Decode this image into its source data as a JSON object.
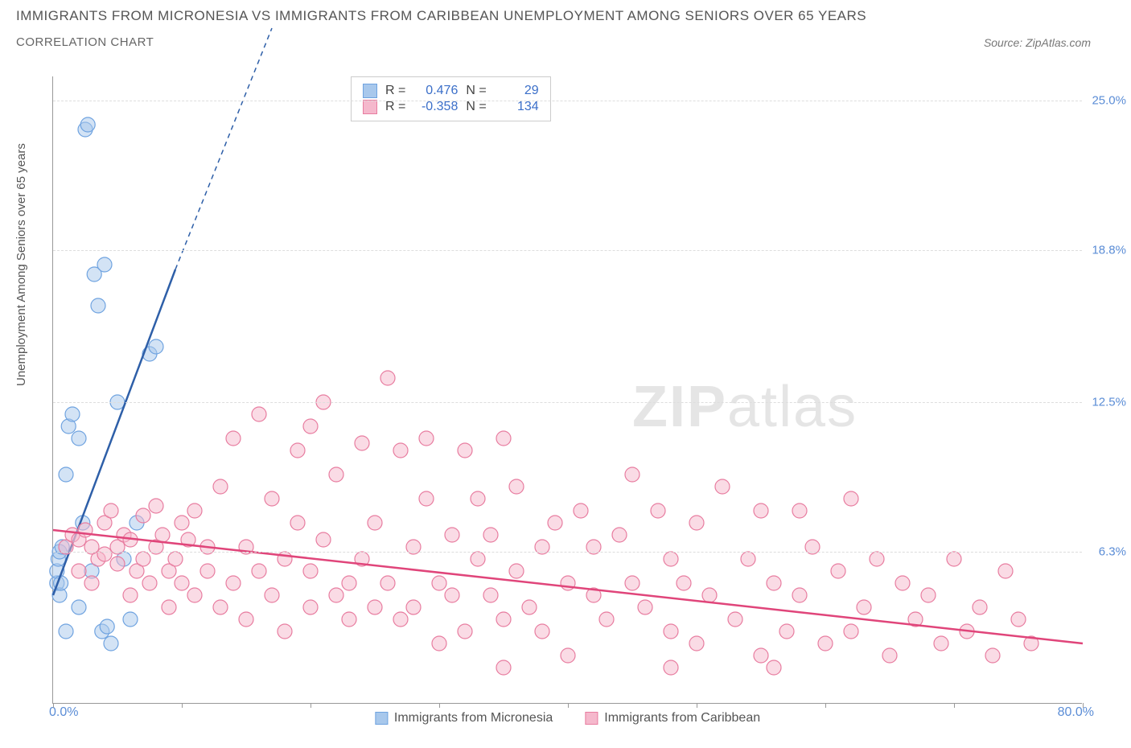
{
  "title": "IMMIGRANTS FROM MICRONESIA VS IMMIGRANTS FROM CARIBBEAN UNEMPLOYMENT AMONG SENIORS OVER 65 YEARS",
  "subtitle": "CORRELATION CHART",
  "source": "Source: ZipAtlas.com",
  "y_axis_label": "Unemployment Among Seniors over 65 years",
  "watermark_a": "ZIP",
  "watermark_b": "atlas",
  "chart": {
    "type": "scatter",
    "background_color": "#ffffff",
    "grid_color": "#dddddd",
    "axis_color": "#999999",
    "text_color": "#555555",
    "tick_label_color": "#5b8dd6",
    "xlim": [
      0,
      80
    ],
    "ylim": [
      0,
      26
    ],
    "x_ticks": [
      0,
      10,
      20,
      30,
      40,
      50,
      60,
      70,
      80
    ],
    "x_tick_labels": {
      "0": "0.0%",
      "80": "80.0%"
    },
    "y_gridlines": [
      6.3,
      12.5,
      18.8,
      25.0
    ],
    "y_tick_labels": [
      "6.3%",
      "12.5%",
      "18.8%",
      "25.0%"
    ],
    "marker_radius": 9,
    "marker_opacity": 0.5,
    "line_width": 2.5,
    "series": [
      {
        "name": "Immigrants from Micronesia",
        "color": "#6fa3e0",
        "fill": "#a8c8ec",
        "line_color": "#2e5fa8",
        "R": "0.476",
        "N": "29",
        "trend": {
          "x1": 0,
          "y1": 4.5,
          "x2": 9.5,
          "y2": 18.0,
          "dash_x2": 17,
          "dash_y2": 28
        },
        "points": [
          [
            0.3,
            5.0
          ],
          [
            0.3,
            5.5
          ],
          [
            0.4,
            6.0
          ],
          [
            0.5,
            4.5
          ],
          [
            0.5,
            6.3
          ],
          [
            0.6,
            5.0
          ],
          [
            0.7,
            6.5
          ],
          [
            1.0,
            9.5
          ],
          [
            1.2,
            11.5
          ],
          [
            1.5,
            12.0
          ],
          [
            2.0,
            11.0
          ],
          [
            2.3,
            7.5
          ],
          [
            2.5,
            23.8
          ],
          [
            2.7,
            24.0
          ],
          [
            3.0,
            5.5
          ],
          [
            3.2,
            17.8
          ],
          [
            3.5,
            16.5
          ],
          [
            3.8,
            3.0
          ],
          [
            4.0,
            18.2
          ],
          [
            4.2,
            3.2
          ],
          [
            4.5,
            2.5
          ],
          [
            5.0,
            12.5
          ],
          [
            5.5,
            6.0
          ],
          [
            6.0,
            3.5
          ],
          [
            6.5,
            7.5
          ],
          [
            7.5,
            14.5
          ],
          [
            8.0,
            14.8
          ],
          [
            2.0,
            4.0
          ],
          [
            1.0,
            3.0
          ]
        ]
      },
      {
        "name": "Immigrants from Caribbean",
        "color": "#e87da0",
        "fill": "#f5b8cc",
        "line_color": "#e0457a",
        "R": "-0.358",
        "N": "134",
        "trend": {
          "x1": 0,
          "y1": 7.2,
          "x2": 80,
          "y2": 2.5
        },
        "points": [
          [
            1,
            6.5
          ],
          [
            1.5,
            7.0
          ],
          [
            2,
            6.8
          ],
          [
            2,
            5.5
          ],
          [
            2.5,
            7.2
          ],
          [
            3,
            6.5
          ],
          [
            3,
            5.0
          ],
          [
            3.5,
            6.0
          ],
          [
            4,
            7.5
          ],
          [
            4,
            6.2
          ],
          [
            4.5,
            8.0
          ],
          [
            5,
            6.5
          ],
          [
            5,
            5.8
          ],
          [
            5.5,
            7.0
          ],
          [
            6,
            6.8
          ],
          [
            6,
            4.5
          ],
          [
            6.5,
            5.5
          ],
          [
            7,
            7.8
          ],
          [
            7,
            6.0
          ],
          [
            7.5,
            5.0
          ],
          [
            8,
            6.5
          ],
          [
            8,
            8.2
          ],
          [
            8.5,
            7.0
          ],
          [
            9,
            5.5
          ],
          [
            9,
            4.0
          ],
          [
            9.5,
            6.0
          ],
          [
            10,
            7.5
          ],
          [
            10,
            5.0
          ],
          [
            10.5,
            6.8
          ],
          [
            11,
            4.5
          ],
          [
            11,
            8.0
          ],
          [
            12,
            5.5
          ],
          [
            12,
            6.5
          ],
          [
            13,
            9.0
          ],
          [
            13,
            4.0
          ],
          [
            14,
            11.0
          ],
          [
            14,
            5.0
          ],
          [
            15,
            6.5
          ],
          [
            15,
            3.5
          ],
          [
            16,
            12.0
          ],
          [
            16,
            5.5
          ],
          [
            17,
            4.5
          ],
          [
            17,
            8.5
          ],
          [
            18,
            6.0
          ],
          [
            18,
            3.0
          ],
          [
            19,
            7.5
          ],
          [
            19,
            10.5
          ],
          [
            20,
            5.5
          ],
          [
            20,
            4.0
          ],
          [
            21,
            6.8
          ],
          [
            21,
            12.5
          ],
          [
            22,
            4.5
          ],
          [
            22,
            9.5
          ],
          [
            23,
            5.0
          ],
          [
            23,
            3.5
          ],
          [
            24,
            10.8
          ],
          [
            24,
            6.0
          ],
          [
            25,
            4.0
          ],
          [
            25,
            7.5
          ],
          [
            26,
            13.5
          ],
          [
            26,
            5.0
          ],
          [
            27,
            10.5
          ],
          [
            27,
            3.5
          ],
          [
            28,
            6.5
          ],
          [
            28,
            4.0
          ],
          [
            29,
            8.5
          ],
          [
            29,
            11.0
          ],
          [
            30,
            5.0
          ],
          [
            30,
            2.5
          ],
          [
            31,
            7.0
          ],
          [
            31,
            4.5
          ],
          [
            32,
            10.5
          ],
          [
            32,
            3.0
          ],
          [
            33,
            6.0
          ],
          [
            33,
            8.5
          ],
          [
            34,
            4.5
          ],
          [
            34,
            7.0
          ],
          [
            35,
            11.0
          ],
          [
            35,
            3.5
          ],
          [
            36,
            5.5
          ],
          [
            36,
            9.0
          ],
          [
            37,
            4.0
          ],
          [
            38,
            6.5
          ],
          [
            38,
            3.0
          ],
          [
            39,
            7.5
          ],
          [
            40,
            5.0
          ],
          [
            40,
            2.0
          ],
          [
            41,
            8.0
          ],
          [
            42,
            4.5
          ],
          [
            42,
            6.5
          ],
          [
            43,
            3.5
          ],
          [
            44,
            7.0
          ],
          [
            45,
            5.0
          ],
          [
            45,
            9.5
          ],
          [
            46,
            4.0
          ],
          [
            47,
            8.0
          ],
          [
            48,
            3.0
          ],
          [
            48,
            6.0
          ],
          [
            49,
            5.0
          ],
          [
            50,
            7.5
          ],
          [
            50,
            2.5
          ],
          [
            51,
            4.5
          ],
          [
            52,
            9.0
          ],
          [
            53,
            3.5
          ],
          [
            54,
            6.0
          ],
          [
            55,
            8.0
          ],
          [
            55,
            2.0
          ],
          [
            56,
            5.0
          ],
          [
            57,
            3.0
          ],
          [
            58,
            4.5
          ],
          [
            58,
            8.0
          ],
          [
            59,
            6.5
          ],
          [
            60,
            2.5
          ],
          [
            61,
            5.5
          ],
          [
            62,
            3.0
          ],
          [
            63,
            4.0
          ],
          [
            64,
            6.0
          ],
          [
            65,
            2.0
          ],
          [
            66,
            5.0
          ],
          [
            67,
            3.5
          ],
          [
            68,
            4.5
          ],
          [
            69,
            2.5
          ],
          [
            70,
            6.0
          ],
          [
            71,
            3.0
          ],
          [
            72,
            4.0
          ],
          [
            73,
            2.0
          ],
          [
            74,
            5.5
          ],
          [
            75,
            3.5
          ],
          [
            76,
            2.5
          ],
          [
            56,
            1.5
          ],
          [
            62,
            8.5
          ],
          [
            48,
            1.5
          ],
          [
            35,
            1.5
          ],
          [
            20,
            11.5
          ]
        ]
      }
    ]
  },
  "stats_box": {
    "r_label": "R =",
    "n_label": "N ="
  }
}
